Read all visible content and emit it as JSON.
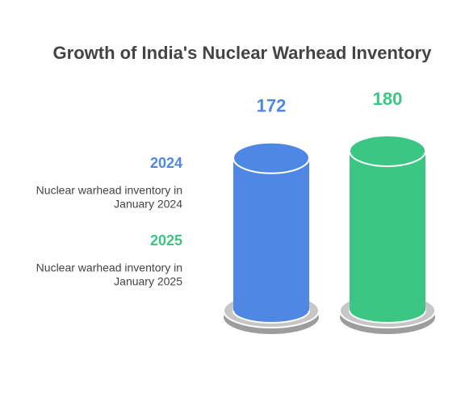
{
  "chart_data": {
    "type": "cylinder",
    "title": "Growth of India's Nuclear Warhead Inventory",
    "categories": [
      "2024",
      "2025"
    ],
    "descriptions": [
      [
        "Nuclear warhead inventory in",
        "January 2024"
      ],
      [
        "Nuclear warhead inventory in",
        "January 2025"
      ]
    ],
    "values": [
      172,
      180
    ],
    "colors": [
      "#4f87e5",
      "#3cc683"
    ]
  }
}
